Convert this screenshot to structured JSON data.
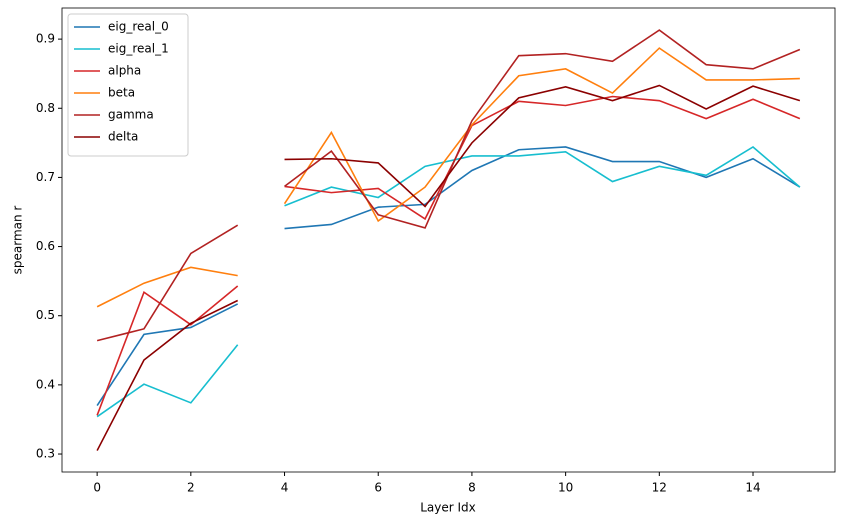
{
  "chart_data": {
    "type": "line",
    "xlabel": "Layer Idx",
    "ylabel": "spearman r",
    "x": [
      0,
      1,
      2,
      3,
      3.5,
      4,
      5,
      6,
      7,
      8,
      9,
      10,
      11,
      12,
      13,
      14,
      15
    ],
    "series": [
      {
        "name": "eig_real_0",
        "color": "#1f77b4",
        "values": [
          0.37,
          0.473,
          0.483,
          0.517,
          null,
          0.626,
          0.632,
          0.657,
          0.661,
          0.71,
          0.74,
          0.744,
          0.723,
          0.723,
          0.7,
          0.727,
          0.686
        ]
      },
      {
        "name": "eig_real_1",
        "color": "#17becf",
        "values": [
          0.354,
          0.401,
          0.374,
          0.458,
          null,
          0.659,
          0.686,
          0.671,
          0.716,
          0.731,
          0.731,
          0.737,
          0.694,
          0.716,
          0.703,
          0.744,
          0.686
        ]
      },
      {
        "name": "alpha",
        "color": "#d62728",
        "values": [
          0.356,
          0.534,
          0.487,
          0.543,
          null,
          0.687,
          0.678,
          0.684,
          0.64,
          0.775,
          0.81,
          0.804,
          0.817,
          0.811,
          0.785,
          0.813,
          0.785
        ]
      },
      {
        "name": "beta",
        "color": "#ff7f0e",
        "values": [
          0.513,
          0.547,
          0.57,
          0.558,
          null,
          0.662,
          0.765,
          0.637,
          0.686,
          0.776,
          0.847,
          0.857,
          0.822,
          0.887,
          0.841,
          0.841,
          0.843
        ]
      },
      {
        "name": "gamma",
        "color": "#b22222",
        "values": [
          0.464,
          0.481,
          0.59,
          0.631,
          null,
          0.687,
          0.738,
          0.646,
          0.627,
          0.782,
          0.876,
          0.879,
          0.868,
          0.913,
          0.863,
          0.857,
          0.885
        ]
      },
      {
        "name": "delta",
        "color": "#8b0000",
        "values": [
          0.305,
          0.436,
          0.489,
          0.522,
          null,
          0.726,
          0.727,
          0.721,
          0.658,
          0.75,
          0.815,
          0.831,
          0.811,
          0.833,
          0.799,
          0.832,
          0.811
        ]
      }
    ],
    "xlim": [
      -0.75,
      15.75
    ],
    "xticks": [
      0,
      2,
      4,
      6,
      8,
      10,
      12,
      14
    ],
    "ylim": [
      0.274,
      0.945
    ],
    "yticks": [
      0.3,
      0.4,
      0.5,
      0.6,
      0.7,
      0.8,
      0.9
    ],
    "grid": false,
    "legend": "upper left"
  }
}
